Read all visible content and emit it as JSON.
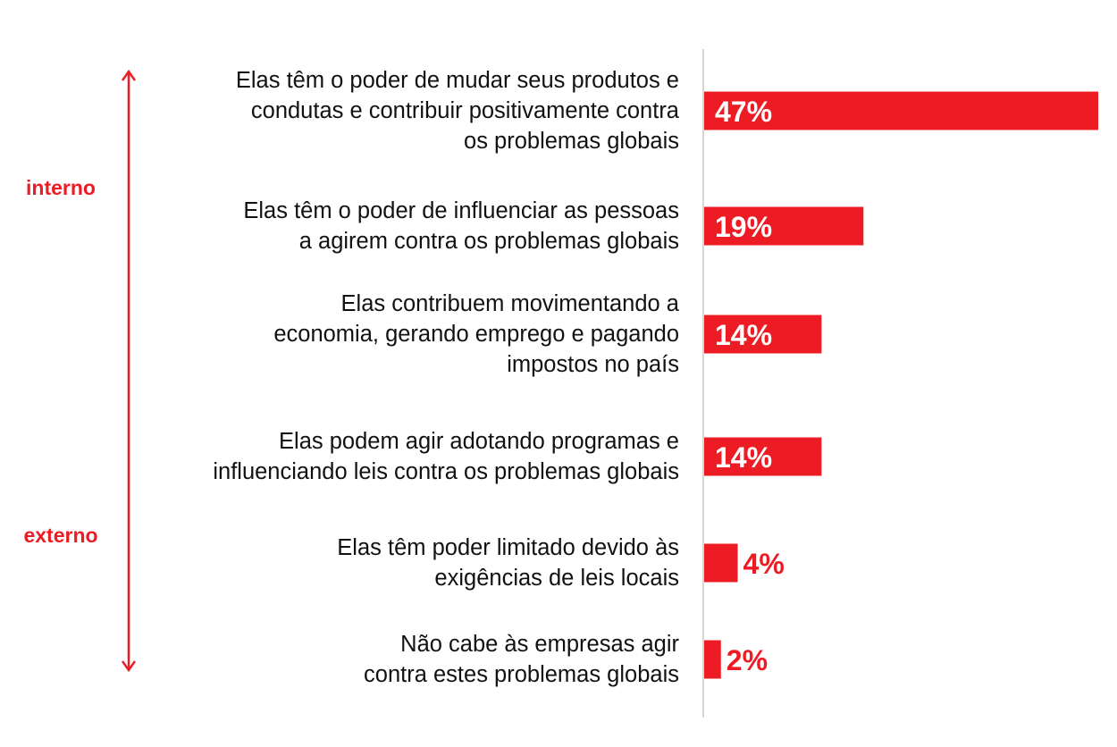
{
  "chart_data": {
    "type": "bar",
    "orientation": "horizontal",
    "categories": [
      "Elas têm o poder de mudar seus produtos e condutas e contribuir positivamente contra os problemas globais",
      "Elas têm o poder de influenciar as pessoas a agirem contra os problemas globais",
      "Elas contribuem movimentando a economia, gerando emprego e pagando impostos no país",
      "Elas podem agir adotando programas e influenciando leis contra os problemas globais",
      "Elas têm poder limitado devido às exigências de leis locais",
      "Não cabe às empresas agir contra estes problemas globais"
    ],
    "category_lines": [
      [
        "Elas têm o poder de mudar seus produtos e",
        "condutas e contribuir positivamente contra",
        "os problemas globais"
      ],
      [
        "Elas têm o poder de influenciar as pessoas",
        "a agirem contra os problemas globais"
      ],
      [
        "Elas contribuem movimentando a",
        "economia, gerando emprego e pagando",
        "impostos no país"
      ],
      [
        "Elas podem agir adotando programas e",
        "influenciando leis contra os problemas globais"
      ],
      [
        "Elas têm poder limitado devido às",
        "exigências de leis locais"
      ],
      [
        "Não cabe às empresas agir",
        "contra estes problemas globais"
      ]
    ],
    "values": [
      47,
      19,
      14,
      14,
      4,
      2
    ],
    "data_labels": [
      "47%",
      "19%",
      "14%",
      "14%",
      "4%",
      "2%"
    ],
    "xlim": [
      0,
      47
    ],
    "grid": false,
    "legend": "none",
    "scale_labels": {
      "top": "interno",
      "bottom": "externo"
    },
    "colors": {
      "bar": "#ed1c24",
      "text": "#111111",
      "inside_label": "#ffffff",
      "axis": "#c8c8c8"
    }
  }
}
